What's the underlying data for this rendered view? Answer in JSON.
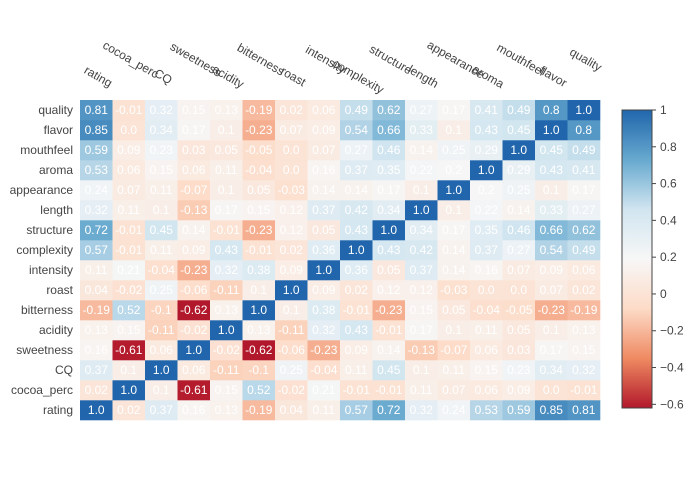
{
  "chart_data": {
    "type": "heatmap",
    "title": "",
    "xlabel": "",
    "ylabel": "",
    "x": [
      "rating",
      "cocoa_perc",
      "CQ",
      "sweetness",
      "acidity",
      "bitterness",
      "roast",
      "intensity",
      "complexity",
      "structure",
      "length",
      "appearance",
      "aroma",
      "mouthfeel",
      "flavor",
      "quality"
    ],
    "y": [
      "rating",
      "cocoa_perc",
      "CQ",
      "sweetness",
      "acidity",
      "bitterness",
      "roast",
      "intensity",
      "complexity",
      "structure",
      "length",
      "appearance",
      "aroma",
      "mouthfeel",
      "flavor",
      "quality"
    ],
    "z": [
      [
        1.0,
        0.02,
        0.37,
        0.16,
        0.13,
        -0.19,
        0.04,
        0.11,
        0.57,
        0.72,
        0.32,
        0.24,
        0.53,
        0.59,
        0.85,
        0.81
      ],
      [
        0.02,
        1.0,
        0.1,
        -0.61,
        0.15,
        0.52,
        -0.02,
        0.21,
        -0.01,
        -0.01,
        0.11,
        0.07,
        0.06,
        0.09,
        -0.0,
        -0.01
      ],
      [
        0.37,
        0.1,
        1.0,
        0.06,
        -0.11,
        -0.1,
        0.25,
        -0.04,
        0.11,
        0.45,
        0.1,
        0.11,
        0.15,
        0.23,
        0.34,
        0.32
      ],
      [
        0.16,
        -0.61,
        0.06,
        1.0,
        -0.02,
        -0.62,
        -0.06,
        -0.23,
        0.09,
        0.14,
        -0.13,
        -0.07,
        0.06,
        0.03,
        0.17,
        0.15
      ],
      [
        0.13,
        0.15,
        -0.11,
        -0.02,
        1.0,
        0.13,
        -0.11,
        0.32,
        0.43,
        -0.01,
        0.17,
        0.1,
        0.11,
        0.05,
        0.1,
        0.13
      ],
      [
        -0.19,
        0.52,
        -0.1,
        -0.62,
        0.13,
        1.0,
        0.1,
        0.38,
        -0.01,
        -0.23,
        0.15,
        0.05,
        -0.04,
        -0.05,
        -0.23,
        -0.19
      ],
      [
        0.04,
        -0.02,
        0.25,
        -0.06,
        -0.11,
        0.1,
        1.0,
        0.09,
        0.02,
        0.12,
        0.12,
        -0.03,
        0.0,
        0.0,
        0.07,
        0.02
      ],
      [
        0.11,
        0.21,
        -0.04,
        -0.23,
        0.32,
        0.38,
        0.09,
        1.0,
        0.36,
        0.05,
        0.37,
        0.14,
        0.16,
        0.07,
        0.09,
        0.06
      ],
      [
        0.57,
        -0.01,
        0.11,
        0.09,
        0.43,
        -0.01,
        0.02,
        0.36,
        1.0,
        0.43,
        0.42,
        0.14,
        0.37,
        0.27,
        0.54,
        0.49
      ],
      [
        0.72,
        -0.01,
        0.45,
        0.14,
        -0.01,
        -0.23,
        0.12,
        0.05,
        0.43,
        1.0,
        0.34,
        0.17,
        0.35,
        0.46,
        0.66,
        0.62
      ],
      [
        0.32,
        0.11,
        0.1,
        -0.13,
        0.17,
        0.15,
        0.12,
        0.37,
        0.42,
        0.34,
        1.0,
        0.1,
        0.22,
        0.14,
        0.33,
        0.27
      ],
      [
        0.24,
        0.07,
        0.11,
        -0.07,
        0.1,
        0.05,
        -0.03,
        0.14,
        0.14,
        0.17,
        0.1,
        1.0,
        0.2,
        0.25,
        0.1,
        0.17
      ],
      [
        0.53,
        0.06,
        0.15,
        0.06,
        0.11,
        -0.04,
        0.0,
        0.16,
        0.37,
        0.35,
        0.22,
        0.2,
        1.0,
        0.29,
        0.43,
        0.41
      ],
      [
        0.59,
        0.09,
        0.23,
        0.03,
        0.05,
        -0.05,
        0.0,
        0.07,
        0.27,
        0.46,
        0.14,
        0.25,
        0.29,
        1.0,
        0.45,
        0.49
      ],
      [
        0.85,
        -0.0,
        0.34,
        0.17,
        0.1,
        -0.23,
        0.07,
        0.09,
        0.54,
        0.66,
        0.33,
        0.1,
        0.43,
        0.45,
        1.0,
        0.8
      ],
      [
        0.81,
        -0.01,
        0.32,
        0.15,
        0.13,
        -0.19,
        0.02,
        0.06,
        0.49,
        0.62,
        0.27,
        0.17,
        0.41,
        0.49,
        0.8,
        1.0
      ]
    ],
    "zrange": [
      -0.62,
      1.0
    ],
    "colorscale": [
      "#b2182b",
      "#ef8a62",
      "#fddbc7",
      "#f7f7f7",
      "#d1e5f0",
      "#67a9cf",
      "#2166ac"
    ],
    "colorbar": {
      "ticks": [
        -0.6,
        -0.4,
        -0.2,
        0,
        0.2,
        0.4,
        0.6,
        0.8,
        1
      ],
      "tick_labels": [
        "−0.6",
        "−0.4",
        "−0.2",
        "0",
        "0.2",
        "0.4",
        "0.6",
        "0.8",
        "1"
      ]
    },
    "grid": false,
    "legend": "colorbar-right"
  }
}
